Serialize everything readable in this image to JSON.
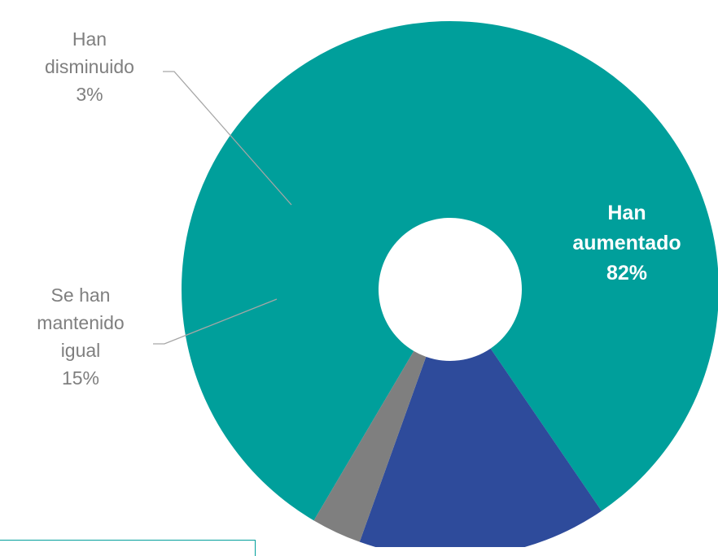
{
  "chart_data": {
    "type": "pie",
    "donut": true,
    "slices": [
      {
        "label_lines": [
          "Han",
          "aumentado"
        ],
        "value": 82,
        "value_text": "82%",
        "color": "#009f9b",
        "label_color": "#ffffff",
        "label_inside": true
      },
      {
        "label_lines": [
          "Se han",
          "mantenido",
          "igual"
        ],
        "value": 15,
        "value_text": "15%",
        "color": "#2e4b9b",
        "label_color": "#7f7f7f",
        "label_inside": false
      },
      {
        "label_lines": [
          "Han",
          "disminuido"
        ],
        "value": 3,
        "value_text": "3%",
        "color": "#7f7f7f",
        "label_color": "#7f7f7f",
        "label_inside": false
      }
    ],
    "legend": "none",
    "leader_line_color": "#a6a6a6"
  }
}
